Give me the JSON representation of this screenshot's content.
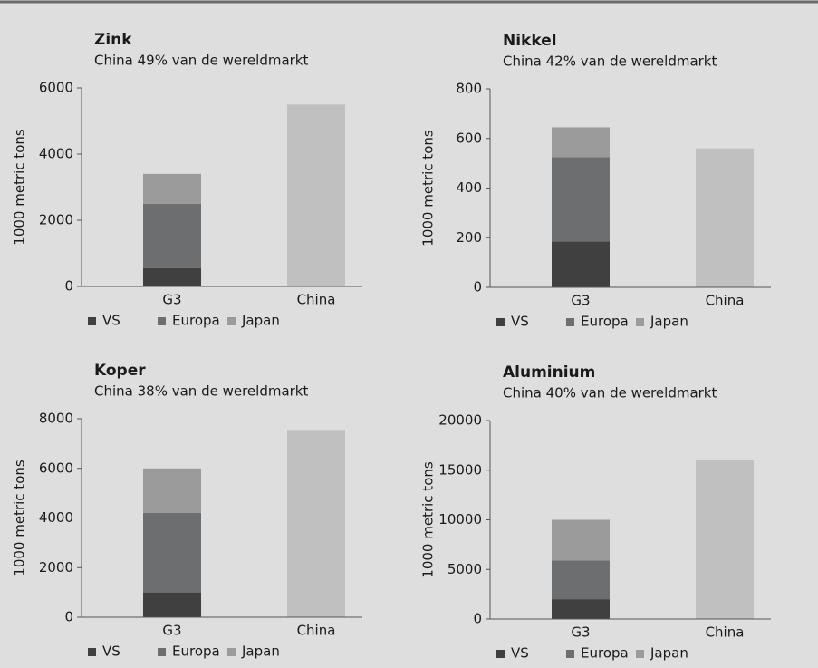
{
  "chart_data": [
    {
      "type": "bar",
      "stacked": true,
      "title": "Zink",
      "subtitle": "China 49% van de wereldmarkt",
      "ylabel": "1000 metric tons",
      "categories": [
        "G3",
        "China"
      ],
      "series": [
        {
          "name": "VS",
          "color": "#404040",
          "values": [
            550,
            null
          ]
        },
        {
          "name": "Europa",
          "color": "#6d6e70",
          "values": [
            1950,
            null
          ]
        },
        {
          "name": "Japan",
          "color": "#9b9b9b",
          "values": [
            900,
            null
          ]
        },
        {
          "color": "#c0c0c0",
          "values": [
            null,
            5500
          ]
        }
      ],
      "ylim": [
        0,
        6000
      ],
      "yticks": [
        0,
        2000,
        4000,
        6000
      ]
    },
    {
      "type": "bar",
      "stacked": true,
      "title": "Nikkel",
      "subtitle": "China 42% van de wereldmarkt",
      "ylabel": "1000 metric tons",
      "categories": [
        "G3",
        "China"
      ],
      "series": [
        {
          "name": "VS",
          "color": "#404040",
          "values": [
            185,
            null
          ]
        },
        {
          "name": "Europa",
          "color": "#6d6e70",
          "values": [
            340,
            null
          ]
        },
        {
          "name": "Japan",
          "color": "#9b9b9b",
          "values": [
            120,
            null
          ]
        },
        {
          "color": "#c0c0c0",
          "values": [
            null,
            560
          ]
        }
      ],
      "ylim": [
        0,
        800
      ],
      "yticks": [
        0,
        200,
        400,
        600,
        800
      ]
    },
    {
      "type": "bar",
      "stacked": true,
      "title": "Koper",
      "subtitle": "China 38% van de wereldmarkt",
      "ylabel": "1000 metric tons",
      "categories": [
        "G3",
        "China"
      ],
      "series": [
        {
          "name": "VS",
          "color": "#404040",
          "values": [
            1000,
            null
          ]
        },
        {
          "name": "Europa",
          "color": "#6d6e70",
          "values": [
            3200,
            null
          ]
        },
        {
          "name": "Japan",
          "color": "#9b9b9b",
          "values": [
            1800,
            null
          ]
        },
        {
          "color": "#c0c0c0",
          "values": [
            null,
            7550
          ]
        }
      ],
      "ylim": [
        0,
        8000
      ],
      "yticks": [
        0,
        2000,
        4000,
        6000,
        8000
      ]
    },
    {
      "type": "bar",
      "stacked": true,
      "title": "Aluminium",
      "subtitle": "China 40% van de wereldmarkt",
      "ylabel": "1000 metric tons",
      "categories": [
        "G3",
        "China"
      ],
      "series": [
        {
          "name": "VS",
          "color": "#404040",
          "values": [
            2000,
            null
          ]
        },
        {
          "name": "Europa",
          "color": "#6d6e70",
          "values": [
            3900,
            null
          ]
        },
        {
          "name": "Japan",
          "color": "#9b9b9b",
          "values": [
            4100,
            null
          ]
        },
        {
          "color": "#c0c0c0",
          "values": [
            null,
            16000
          ]
        }
      ],
      "ylim": [
        0,
        20000
      ],
      "yticks": [
        0,
        5000,
        10000,
        15000,
        20000
      ]
    }
  ]
}
